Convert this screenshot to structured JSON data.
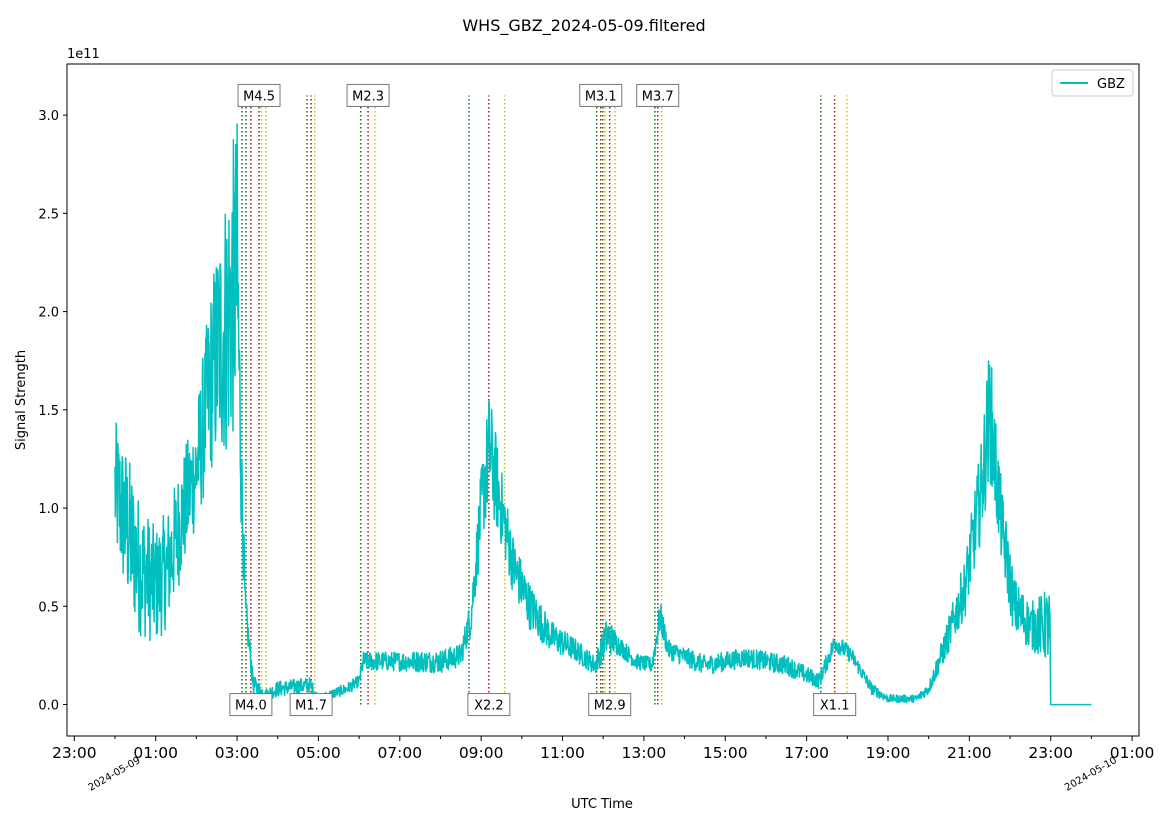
{
  "chart_data": {
    "type": "line",
    "title": "WHS_GBZ_2024-05-09.filtered",
    "xlabel": "UTC Time",
    "ylabel": "Signal Strength",
    "y_offset_label": "1e11",
    "y_scale": 100000000000.0,
    "xlim_hours": [
      -1.18,
      25.17
    ],
    "ylim": [
      -0.16,
      3.26
    ],
    "x_ticks": [
      {
        "hour": -1,
        "label": "23:00"
      },
      {
        "hour": 1,
        "label": "01:00"
      },
      {
        "hour": 3,
        "label": "03:00"
      },
      {
        "hour": 5,
        "label": "05:00"
      },
      {
        "hour": 7,
        "label": "07:00"
      },
      {
        "hour": 9,
        "label": "09:00"
      },
      {
        "hour": 11,
        "label": "11:00"
      },
      {
        "hour": 13,
        "label": "13:00"
      },
      {
        "hour": 15,
        "label": "15:00"
      },
      {
        "hour": 17,
        "label": "17:00"
      },
      {
        "hour": 19,
        "label": "19:00"
      },
      {
        "hour": 21,
        "label": "21:00"
      },
      {
        "hour": 23,
        "label": "23:00"
      },
      {
        "hour": 25,
        "label": "01:00"
      }
    ],
    "x_minor_ticks_hours": [
      0,
      2,
      4,
      6,
      8,
      10,
      12,
      14,
      16,
      18,
      20,
      22,
      24
    ],
    "date_labels": [
      {
        "hour": 0,
        "label": "2024-05-09"
      },
      {
        "hour": 24,
        "label": "2024-05-10"
      }
    ],
    "y_ticks": [
      {
        "value": 0.0,
        "label": "0.0"
      },
      {
        "value": 0.5,
        "label": "0.5"
      },
      {
        "value": 1.0,
        "label": "1.0"
      },
      {
        "value": 1.5,
        "label": "1.5"
      },
      {
        "value": 2.0,
        "label": "2.0"
      },
      {
        "value": 2.5,
        "label": "2.5"
      },
      {
        "value": 3.0,
        "label": "3.0"
      }
    ],
    "legend": {
      "position": "top-right",
      "entries": [
        {
          "name": "GBZ",
          "color": "#00bfbf"
        }
      ]
    },
    "series": [
      {
        "name": "GBZ",
        "color": "#00bfbf",
        "envelope_columns": [
          "hour",
          "value_e11",
          "noise_e11"
        ],
        "envelope": [
          [
            0.0,
            1.1,
            0.35
          ],
          [
            0.3,
            0.9,
            0.4
          ],
          [
            0.6,
            0.7,
            0.35
          ],
          [
            1.0,
            0.6,
            0.3
          ],
          [
            1.3,
            0.7,
            0.3
          ],
          [
            1.7,
            1.0,
            0.3
          ],
          [
            2.0,
            1.2,
            0.3
          ],
          [
            2.4,
            1.7,
            0.5
          ],
          [
            2.8,
            2.0,
            0.75
          ],
          [
            3.0,
            2.2,
            0.8
          ],
          [
            3.1,
            1.2,
            0.3
          ],
          [
            3.2,
            0.5,
            0.1
          ],
          [
            3.4,
            0.1,
            0.05
          ],
          [
            3.7,
            0.05,
            0.03
          ],
          [
            4.0,
            0.08,
            0.04
          ],
          [
            4.8,
            0.1,
            0.04
          ],
          [
            5.0,
            0.03,
            0.02
          ],
          [
            5.7,
            0.08,
            0.03
          ],
          [
            6.0,
            0.12,
            0.03
          ],
          [
            6.1,
            0.22,
            0.05
          ],
          [
            7.0,
            0.22,
            0.05
          ],
          [
            8.0,
            0.22,
            0.06
          ],
          [
            8.5,
            0.25,
            0.06
          ],
          [
            8.75,
            0.45,
            0.1
          ],
          [
            9.0,
            1.0,
            0.2
          ],
          [
            9.2,
            1.3,
            0.3
          ],
          [
            9.5,
            1.0,
            0.2
          ],
          [
            9.8,
            0.7,
            0.15
          ],
          [
            10.2,
            0.5,
            0.12
          ],
          [
            10.7,
            0.35,
            0.08
          ],
          [
            11.3,
            0.28,
            0.06
          ],
          [
            11.8,
            0.2,
            0.05
          ],
          [
            12.1,
            0.35,
            0.1
          ],
          [
            12.4,
            0.3,
            0.05
          ],
          [
            12.8,
            0.22,
            0.04
          ],
          [
            13.2,
            0.2,
            0.04
          ],
          [
            13.4,
            0.45,
            0.08
          ],
          [
            13.6,
            0.28,
            0.05
          ],
          [
            14.5,
            0.2,
            0.05
          ],
          [
            15.5,
            0.24,
            0.05
          ],
          [
            16.5,
            0.2,
            0.05
          ],
          [
            17.3,
            0.12,
            0.04
          ],
          [
            17.7,
            0.32,
            0.05
          ],
          [
            18.1,
            0.25,
            0.04
          ],
          [
            18.6,
            0.08,
            0.03
          ],
          [
            19.0,
            0.03,
            0.02
          ],
          [
            19.7,
            0.03,
            0.02
          ],
          [
            20.0,
            0.08,
            0.03
          ],
          [
            20.4,
            0.3,
            0.08
          ],
          [
            20.9,
            0.6,
            0.15
          ],
          [
            21.3,
            1.1,
            0.25
          ],
          [
            21.5,
            1.5,
            0.35
          ],
          [
            21.8,
            0.9,
            0.2
          ],
          [
            22.1,
            0.5,
            0.15
          ],
          [
            22.5,
            0.4,
            0.12
          ],
          [
            22.98,
            0.4,
            0.2
          ],
          [
            23.0,
            0.0,
            0.0
          ],
          [
            24.0,
            0.0,
            0.0
          ]
        ]
      }
    ],
    "flare_line_top": 3.1,
    "flare_colors": {
      "start": "#008000",
      "peak": "#e00000",
      "end": "#c8c800"
    },
    "flares": [
      {
        "label": "M4.0",
        "start": 3.12,
        "peak": 3.34,
        "end": 3.6,
        "label_position": "bottom"
      },
      {
        "label": "M4.5",
        "start": 3.22,
        "peak": 3.54,
        "end": 3.71,
        "label_position": "top"
      },
      {
        "label": "M1.7",
        "start": 4.72,
        "peak": 4.82,
        "end": 4.91,
        "label_position": "bottom"
      },
      {
        "label": "M2.3",
        "start": 6.04,
        "peak": 6.22,
        "end": 6.39,
        "label_position": "top"
      },
      {
        "label": "X2.2",
        "start": 8.7,
        "peak": 9.19,
        "end": 9.58,
        "label_position": "bottom"
      },
      {
        "label": "M3.1",
        "start": 11.84,
        "peak": 11.94,
        "end": 12.04,
        "label_position": "top"
      },
      {
        "label": "M2.9",
        "start": 11.99,
        "peak": 12.16,
        "end": 12.29,
        "label_position": "bottom"
      },
      {
        "label": "M3.7",
        "start": 13.27,
        "peak": 13.34,
        "end": 13.44,
        "label_position": "top"
      },
      {
        "label": "X1.1",
        "start": 17.35,
        "peak": 17.69,
        "end": 17.99,
        "label_position": "bottom"
      }
    ]
  }
}
